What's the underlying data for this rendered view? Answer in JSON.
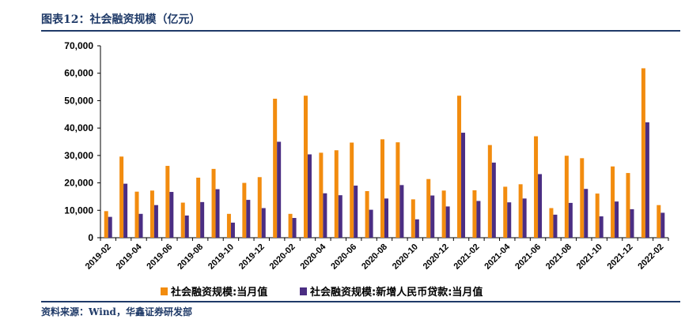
{
  "header": {
    "title": "图表12：社会融资规模（亿元）"
  },
  "footer": {
    "source": "资料来源：Wind，华鑫证券研发部"
  },
  "colors": {
    "series1": "#F28C0F",
    "series2": "#4B2E83",
    "rule": "#1f3a68"
  },
  "chart_data": {
    "type": "bar",
    "ylim": [
      0,
      70000
    ],
    "yticks": [
      0,
      10000,
      20000,
      30000,
      40000,
      50000,
      60000,
      70000
    ],
    "ytick_labels": [
      "0",
      "10,000",
      "20,000",
      "30,000",
      "40,000",
      "50,000",
      "60,000",
      "70,000"
    ],
    "categories": [
      "2019-02",
      "2019-03",
      "2019-04",
      "2019-05",
      "2019-06",
      "2019-07",
      "2019-08",
      "2019-09",
      "2019-10",
      "2019-11",
      "2019-12",
      "2020-01",
      "2020-02",
      "2020-03",
      "2020-04",
      "2020-05",
      "2020-06",
      "2020-07",
      "2020-08",
      "2020-09",
      "2020-10",
      "2020-11",
      "2020-12",
      "2021-01",
      "2021-02",
      "2021-03",
      "2021-04",
      "2021-05",
      "2021-06",
      "2021-07",
      "2021-08",
      "2021-09",
      "2021-10",
      "2021-11",
      "2021-12",
      "2022-01",
      "2022-02"
    ],
    "xtick_labels": [
      "2019-02",
      "2019-04",
      "2019-06",
      "2019-08",
      "2019-10",
      "2019-12",
      "2020-02",
      "2020-04",
      "2020-06",
      "2020-08",
      "2020-10",
      "2020-12",
      "2021-02",
      "2021-04",
      "2021-06",
      "2021-08",
      "2021-10",
      "2021-12",
      "2022-02"
    ],
    "series": [
      {
        "name": "社会融资规模:当月值",
        "values": [
          9700,
          29600,
          16800,
          17200,
          26200,
          12800,
          21900,
          25100,
          8700,
          20000,
          22100,
          50700,
          8700,
          51800,
          31000,
          31900,
          34700,
          17000,
          35900,
          34800,
          14000,
          21400,
          17200,
          51800,
          17300,
          33800,
          18600,
          19500,
          37000,
          10800,
          29900,
          29000,
          16100,
          26000,
          23600,
          61800,
          11900
        ]
      },
      {
        "name": "社会融资规模:新增人民币贷款:当月值",
        "values": [
          7600,
          19700,
          8700,
          11900,
          16700,
          8100,
          13000,
          17700,
          5500,
          13800,
          10800,
          35000,
          7200,
          30400,
          16200,
          15500,
          19000,
          10200,
          14300,
          19200,
          6700,
          15400,
          11400,
          38300,
          13400,
          27400,
          12900,
          14300,
          23200,
          8400,
          12700,
          17800,
          7800,
          13200,
          10400,
          42100,
          9100
        ]
      }
    ]
  }
}
